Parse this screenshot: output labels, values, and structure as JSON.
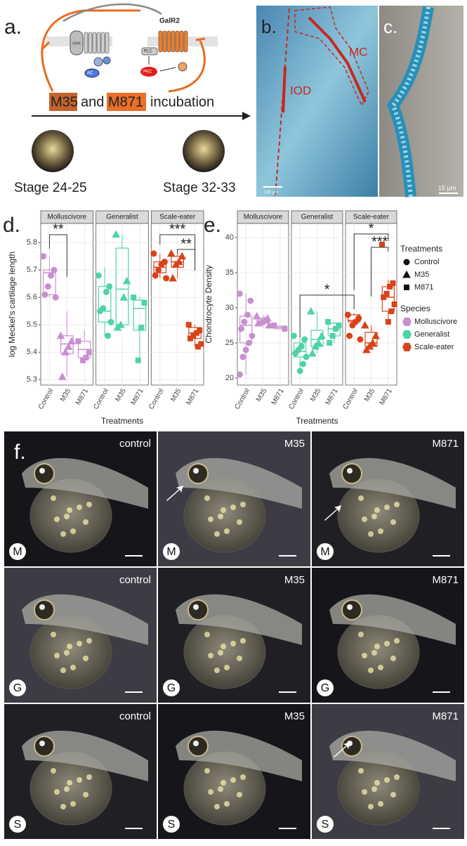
{
  "chart_data": [
    {
      "type": "box",
      "ylabel": "log Meckel's cartilage length",
      "xlabel": "Treatments",
      "categories": [
        "Control",
        "M35",
        "M871"
      ],
      "shapes": [
        "circle",
        "triangle",
        "square"
      ],
      "ylim": [
        5.28,
        5.87
      ],
      "yticks": [
        5.3,
        5.4,
        5.5,
        5.6,
        5.7,
        5.8
      ],
      "grid": true,
      "annotations": [
        "**",
        "***",
        "**"
      ],
      "facets": [
        {
          "name": "Molluscivore",
          "color": "#c98fcf",
          "groups": [
            {
              "box": {
                "q1": 5.61,
                "median": 5.69,
                "q3": 5.7,
                "low": 5.6,
                "high": 5.75
              },
              "points": [
                5.75,
                5.7,
                5.68,
                5.64,
                5.61,
                5.6
              ]
            },
            {
              "box": {
                "q1": 5.395,
                "median": 5.43,
                "q3": 5.46,
                "low": 5.31,
                "high": 5.55
              },
              "points": [
                5.46,
                5.44,
                5.42,
                5.4,
                5.31
              ]
            },
            {
              "box": {
                "q1": 5.38,
                "median": 5.41,
                "q3": 5.44,
                "low": 5.37,
                "high": 5.48
              },
              "points": [
                5.44,
                5.4,
                5.38,
                5.37
              ]
            }
          ]
        },
        {
          "name": "Generalist",
          "color": "#4fd3a5",
          "groups": [
            {
              "box": {
                "q1": 5.51,
                "median": 5.55,
                "q3": 5.64,
                "low": 5.46,
                "high": 5.71
              },
              "points": [
                5.68,
                5.64,
                5.62,
                5.56,
                5.55,
                5.51,
                5.46
              ]
            },
            {
              "box": {
                "q1": 5.5,
                "median": 5.63,
                "q3": 5.78,
                "low": 5.49,
                "high": 5.83
              },
              "points": [
                5.83,
                5.66,
                5.6,
                5.5,
                5.49
              ]
            },
            {
              "box": {
                "q1": 5.48,
                "median": 5.56,
                "q3": 5.59,
                "low": 5.37,
                "high": 5.6
              },
              "points": [
                5.6,
                5.58,
                5.49,
                5.37
              ]
            }
          ]
        },
        {
          "name": "Scale-eater",
          "color": "#d8431a",
          "groups": [
            {
              "box": {
                "q1": 5.69,
                "median": 5.71,
                "q3": 5.73,
                "low": 5.67,
                "high": 5.76
              },
              "points": [
                5.76,
                5.73,
                5.72,
                5.7,
                5.68,
                5.67
              ]
            },
            {
              "box": {
                "q1": 5.71,
                "median": 5.73,
                "q3": 5.75,
                "low": 5.67,
                "high": 5.76
              },
              "points": [
                5.76,
                5.75,
                5.73,
                5.72,
                5.67
              ]
            },
            {
              "box": {
                "q1": 5.45,
                "median": 5.47,
                "q3": 5.49,
                "low": 5.42,
                "high": 5.5
              },
              "points": [
                5.5,
                5.48,
                5.47,
                5.46,
                5.45,
                5.43,
                5.42
              ]
            }
          ]
        }
      ]
    },
    {
      "type": "box",
      "ylabel": "Chondrocyte Density",
      "xlabel": "Treatments",
      "categories": [
        "Control",
        "M35",
        "M871"
      ],
      "shapes": [
        "circle",
        "triangle",
        "square"
      ],
      "ylim": [
        19,
        42
      ],
      "yticks": [
        20,
        25,
        30,
        35,
        40
      ],
      "grid": true,
      "annotations": [
        "*",
        "***",
        "*"
      ],
      "legend": {
        "shape_title": "Treatments",
        "species_title": "Species"
      },
      "facets": [
        {
          "name": "Molluscivore",
          "color": "#c98fcf",
          "groups": [
            {
              "box": {
                "q1": 25,
                "median": 27.5,
                "q3": 28.8,
                "low": 20.5,
                "high": 32
              },
              "points": [
                32,
                31,
                29,
                28,
                27,
                26,
                25,
                24,
                23,
                20.5
              ]
            },
            {
              "box": {
                "q1": 27.8,
                "median": 28,
                "q3": 28.5,
                "low": 27.2,
                "high": 29
              },
              "points": [
                28.8,
                28.5,
                28.2,
                28,
                27.8,
                27.5
              ]
            },
            {
              "box": {
                "q1": 27,
                "median": 27.2,
                "q3": 27.4,
                "low": 27,
                "high": 27.5
              },
              "points": [
                27.5,
                27
              ]
            }
          ]
        },
        {
          "name": "Generalist",
          "color": "#4fd3a5",
          "groups": [
            {
              "box": {
                "q1": 23,
                "median": 23.8,
                "q3": 25,
                "low": 21,
                "high": 26
              },
              "points": [
                26,
                25.5,
                24.5,
                24,
                23.5,
                23,
                22,
                21
              ]
            },
            {
              "box": {
                "q1": 24.5,
                "median": 25.5,
                "q3": 26.8,
                "low": 23.5,
                "high": 29.5
              },
              "points": [
                29.5,
                26,
                25,
                24.5,
                23.5
              ]
            },
            {
              "box": {
                "q1": 26,
                "median": 27,
                "q3": 27.8,
                "low": 25,
                "high": 28
              },
              "points": [
                28,
                27.5,
                27,
                26,
                25
              ]
            }
          ]
        },
        {
          "name": "Scale-eater",
          "color": "#d8431a",
          "groups": [
            {
              "box": {
                "q1": 28,
                "median": 28.2,
                "q3": 29,
                "low": 27.5,
                "high": 29.2
              },
              "points": [
                29,
                28.5,
                28,
                27.5,
                26,
                25.5
              ]
            },
            {
              "box": {
                "q1": 24.5,
                "median": 25,
                "q3": 26.5,
                "low": 24,
                "high": 27.5
              },
              "points": [
                27.5,
                26,
                25,
                24.5,
                24
              ]
            },
            {
              "box": {
                "q1": 29.5,
                "median": 31.5,
                "q3": 33,
                "low": 28,
                "high": 34
              },
              "points": [
                39,
                33.5,
                33,
                32,
                31.5,
                30.5,
                29.5,
                28
              ]
            }
          ]
        }
      ]
    }
  ],
  "panels": {
    "a": {
      "label": "a.",
      "receptor": "GalR2",
      "girk": "GIRK",
      "plc": "PLC",
      "pkc": "PKC",
      "ac": "AC",
      "drug1": "M35",
      "and": "and",
      "drug2": "M871",
      "incubation": "incubation",
      "stages": [
        "Stage 24-25",
        "Stage 32-33"
      ]
    },
    "b": {
      "label": "b.",
      "mc": "MC",
      "iod": "IOD",
      "scale": "100 µm"
    },
    "c": {
      "label": "c.",
      "scale": "15 µm"
    },
    "d": {
      "label": "d."
    },
    "e": {
      "label": "e."
    },
    "f": {
      "label": "f.",
      "columns": [
        "control",
        "M35",
        "M871"
      ],
      "rows": [
        "M",
        "G",
        "S"
      ]
    }
  }
}
